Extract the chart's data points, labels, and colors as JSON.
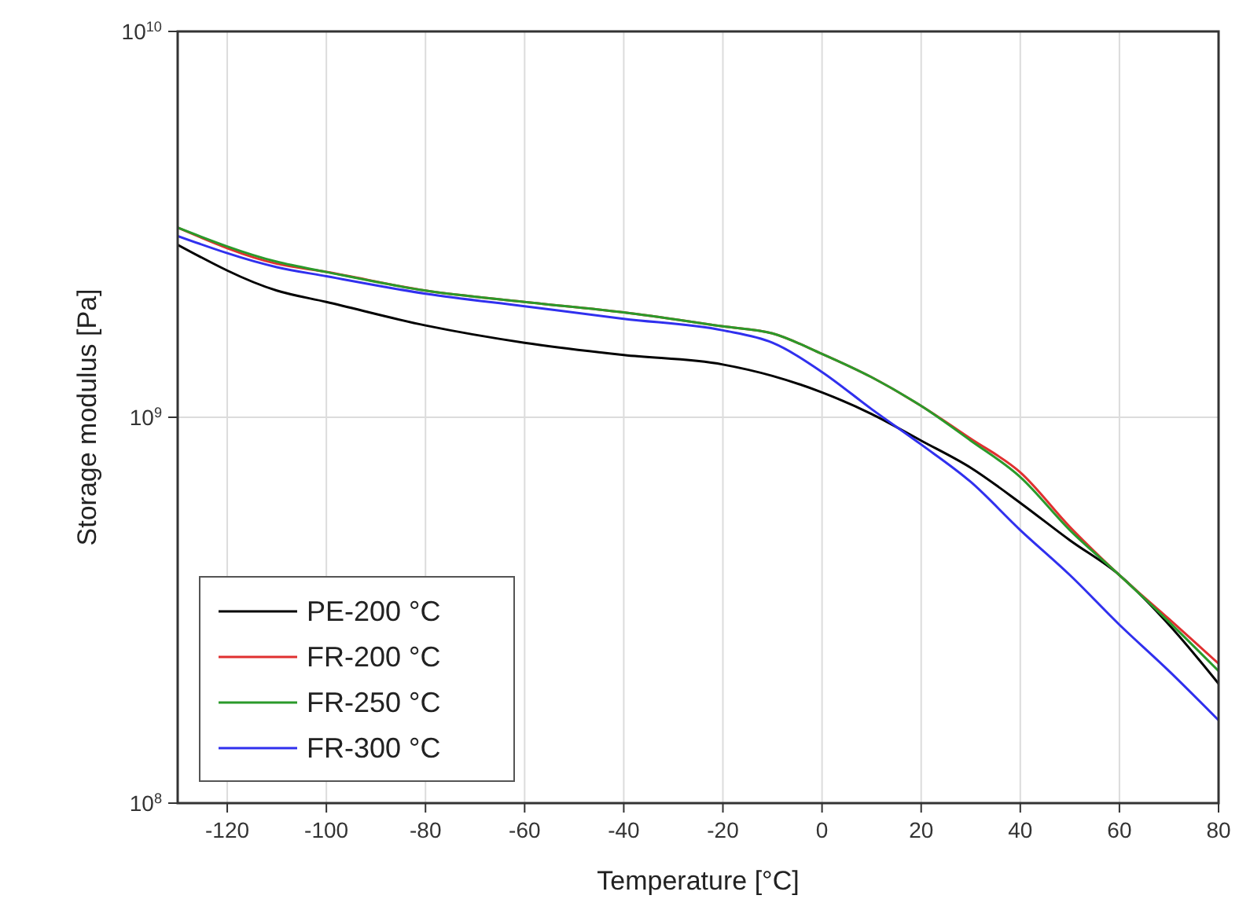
{
  "chart_data": {
    "type": "line",
    "xlabel": "Temperature [°C]",
    "ylabel": "Storage modulus [Pa]",
    "x": [
      -130,
      -110,
      -100,
      -80,
      -60,
      -40,
      -20,
      -10,
      0,
      10,
      20,
      30,
      40,
      50,
      60,
      70,
      80
    ],
    "series": [
      {
        "name": "PE-200 °C",
        "color": "#000000",
        "values": [
          2800000000.0,
          2130000000.0,
          1990000000.0,
          1730000000.0,
          1560000000.0,
          1450000000.0,
          1370000000.0,
          1280000000.0,
          1160000000.0,
          1020000000.0,
          870000000.0,
          740000000.0,
          600000000.0,
          480000000.0,
          390000000.0,
          290000000.0,
          204000000.0
        ]
      },
      {
        "name": "FR-200 °C",
        "color": "#e03030",
        "values": [
          3100000000.0,
          2500000000.0,
          2380000000.0,
          2130000000.0,
          1990000000.0,
          1870000000.0,
          1720000000.0,
          1650000000.0,
          1460000000.0,
          1270000000.0,
          1070000000.0,
          880000000.0,
          720000000.0,
          520000000.0,
          390000000.0,
          300000000.0,
          230000000.0
        ]
      },
      {
        "name": "FR-250 °C",
        "color": "#2a9a2a",
        "values": [
          3100000000.0,
          2530000000.0,
          2380000000.0,
          2130000000.0,
          1990000000.0,
          1870000000.0,
          1720000000.0,
          1650000000.0,
          1460000000.0,
          1270000000.0,
          1070000000.0,
          870000000.0,
          700000000.0,
          510000000.0,
          390000000.0,
          295000000.0,
          220000000.0
        ]
      },
      {
        "name": "FR-300 °C",
        "color": "#3030ee",
        "values": [
          2950000000.0,
          2450000000.0,
          2320000000.0,
          2090000000.0,
          1940000000.0,
          1800000000.0,
          1680000000.0,
          1560000000.0,
          1310000000.0,
          1050000000.0,
          850000000.0,
          680000000.0,
          510000000.0,
          390000000.0,
          290000000.0,
          220000000.0,
          164000000.0
        ]
      }
    ],
    "xlim": [
      -130,
      80
    ],
    "xticks": [
      -120,
      -100,
      -80,
      -60,
      -40,
      -20,
      0,
      20,
      40,
      60,
      80
    ],
    "ylim": [
      100000000.0,
      10000000000.0
    ],
    "yticks": [
      {
        "value": 100000000.0,
        "label": "10$^{8}$"
      },
      {
        "value": 1000000000.0,
        "label": "10$^{9}$"
      },
      {
        "value": 10000000000.0,
        "label": "10$^{10}$"
      }
    ],
    "log": "y",
    "grid": true,
    "legend": "bottom left",
    "marker": "none",
    "line_style": "solid"
  }
}
